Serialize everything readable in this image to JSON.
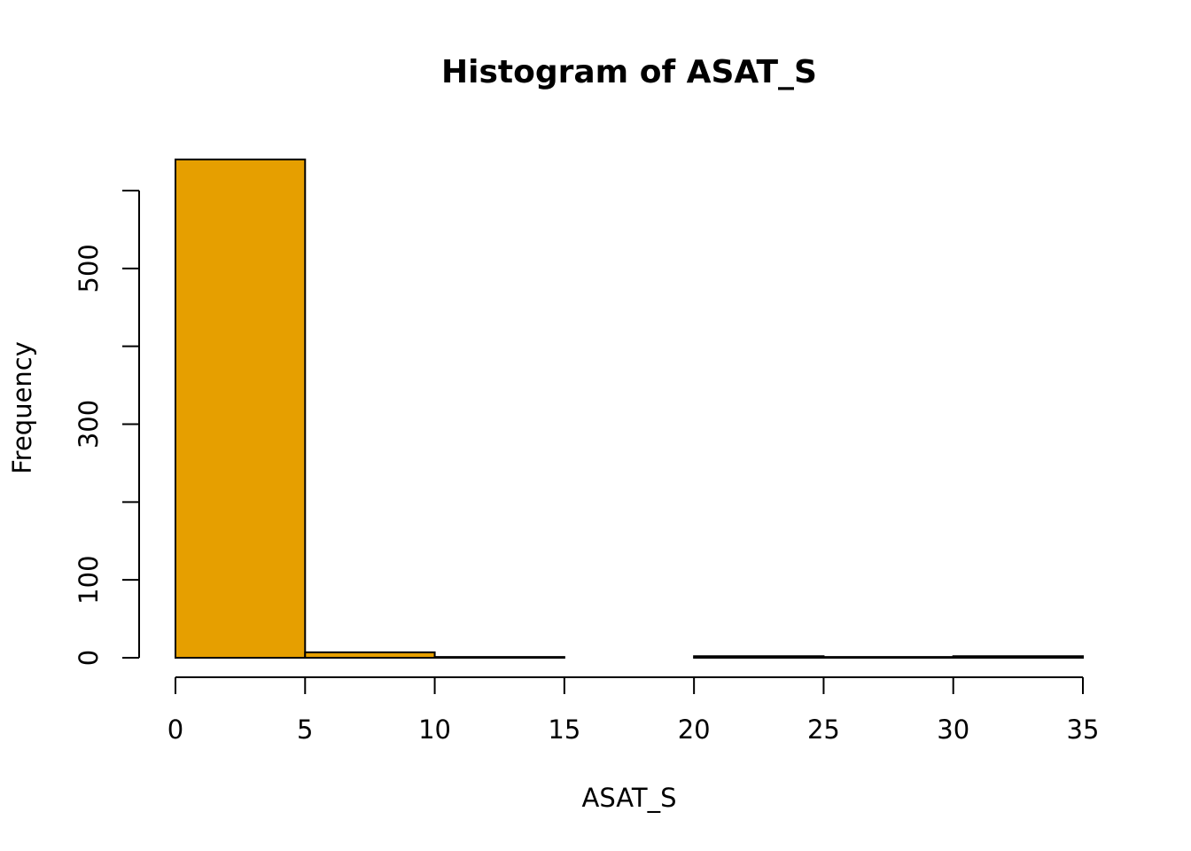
{
  "chart_data": {
    "type": "bar",
    "title": "Histogram of ASAT_S",
    "xlabel": "ASAT_S",
    "ylabel": "Frequency",
    "bins": [
      {
        "start": 0,
        "end": 5,
        "count": 640
      },
      {
        "start": 5,
        "end": 10,
        "count": 7
      },
      {
        "start": 10,
        "end": 15,
        "count": 1
      },
      {
        "start": 15,
        "end": 20,
        "count": 0
      },
      {
        "start": 20,
        "end": 25,
        "count": 2
      },
      {
        "start": 25,
        "end": 30,
        "count": 1
      },
      {
        "start": 30,
        "end": 35,
        "count": 2
      }
    ],
    "xlim": [
      0,
      35
    ],
    "ylim": [
      0,
      600
    ],
    "x_ticks": [
      0,
      5,
      10,
      15,
      20,
      25,
      30,
      35
    ],
    "y_ticks": [
      0,
      100,
      200,
      300,
      400,
      500,
      600
    ],
    "y_tick_labels": [
      "0",
      "100",
      "",
      "300",
      "",
      "500",
      ""
    ],
    "bar_color": "#E69F00",
    "grid": false,
    "legend": "none"
  }
}
